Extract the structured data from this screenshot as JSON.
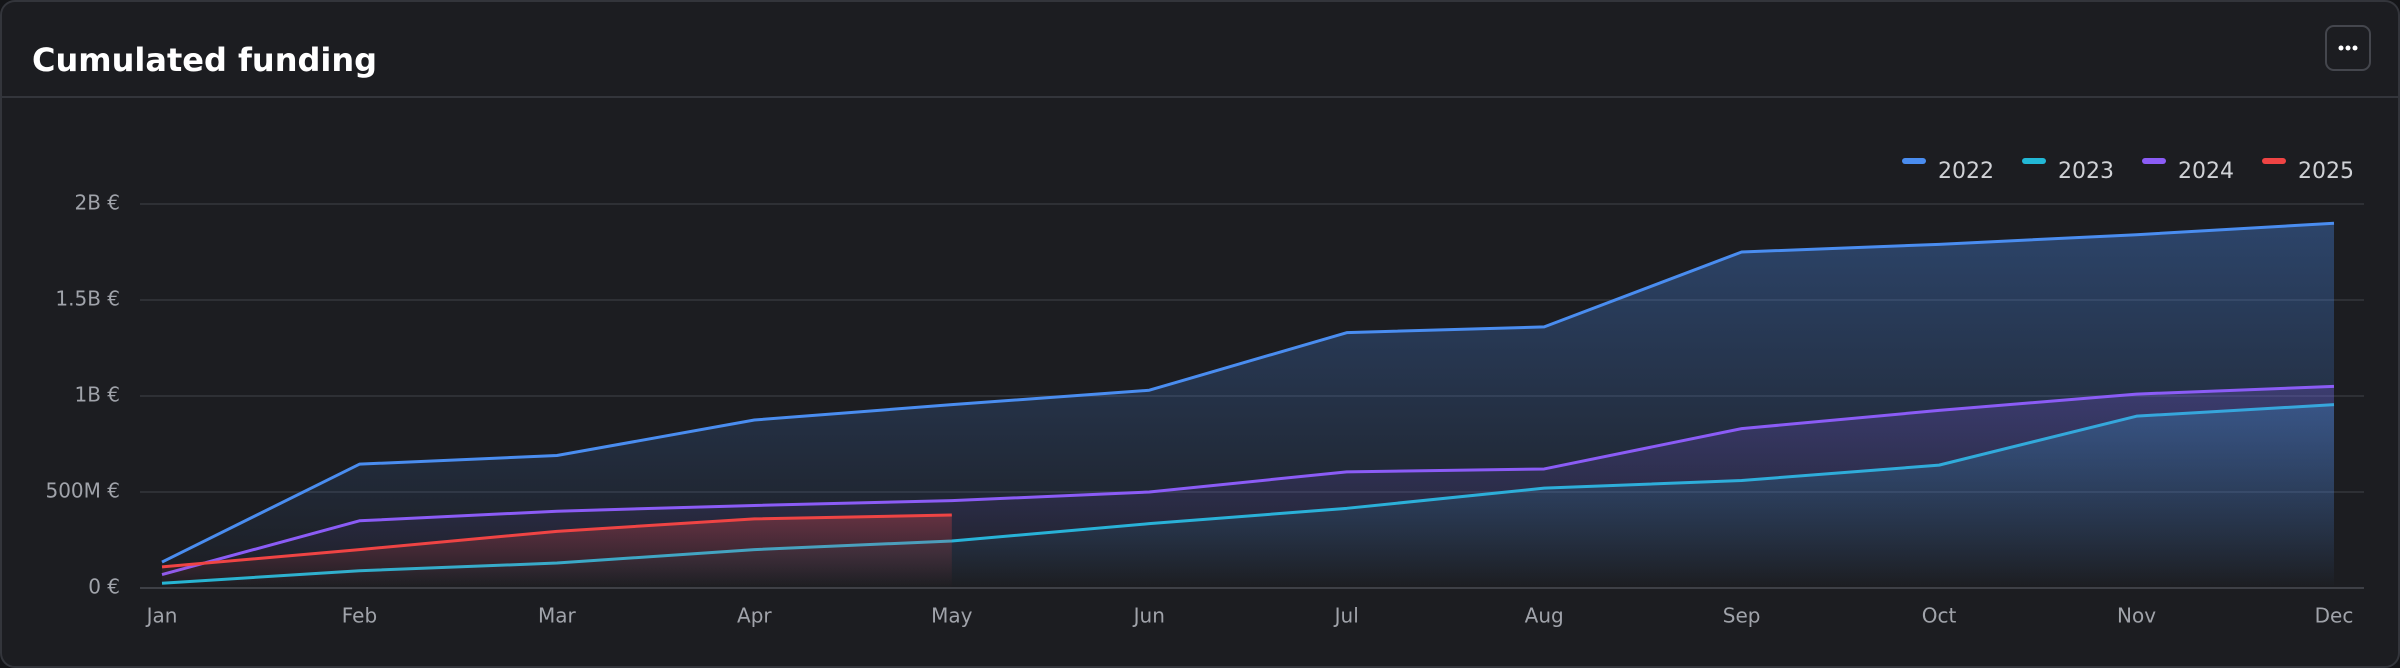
{
  "chart_data": {
    "type": "line",
    "title": "Cumulated funding",
    "categories": [
      "Jan",
      "Feb",
      "Mar",
      "Apr",
      "May",
      "Jun",
      "Jul",
      "Aug",
      "Sep",
      "Oct",
      "Nov",
      "Dec"
    ],
    "series": [
      {
        "name": "2022",
        "color": "#4a8df0",
        "values": [
          135000000,
          645000000,
          690000000,
          875000000,
          955000000,
          1030000000,
          1330000000,
          1360000000,
          1750000000,
          1790000000,
          1840000000,
          1900000000
        ]
      },
      {
        "name": "2023",
        "color": "#22b8d6",
        "values": [
          25000000,
          90000000,
          130000000,
          200000000,
          245000000,
          335000000,
          415000000,
          520000000,
          560000000,
          640000000,
          895000000,
          955000000
        ]
      },
      {
        "name": "2024",
        "color": "#8b5cf6",
        "values": [
          70000000,
          350000000,
          400000000,
          430000000,
          455000000,
          500000000,
          605000000,
          620000000,
          830000000,
          925000000,
          1010000000,
          1050000000
        ]
      },
      {
        "name": "2025",
        "color": "#ef4444",
        "values": [
          110000000,
          200000000,
          295000000,
          360000000,
          380000000,
          null,
          null,
          null,
          null,
          null,
          null,
          null
        ]
      }
    ],
    "ylim": [
      0,
      2000000000
    ],
    "yticks": [
      {
        "value": 0,
        "label": "0 €"
      },
      {
        "value": 500000000,
        "label": "500M €"
      },
      {
        "value": 1000000000,
        "label": "1B €"
      },
      {
        "value": 1500000000,
        "label": "1.5B €"
      },
      {
        "value": 2000000000,
        "label": "2B €"
      }
    ],
    "grid": true,
    "legend": "top-right"
  }
}
